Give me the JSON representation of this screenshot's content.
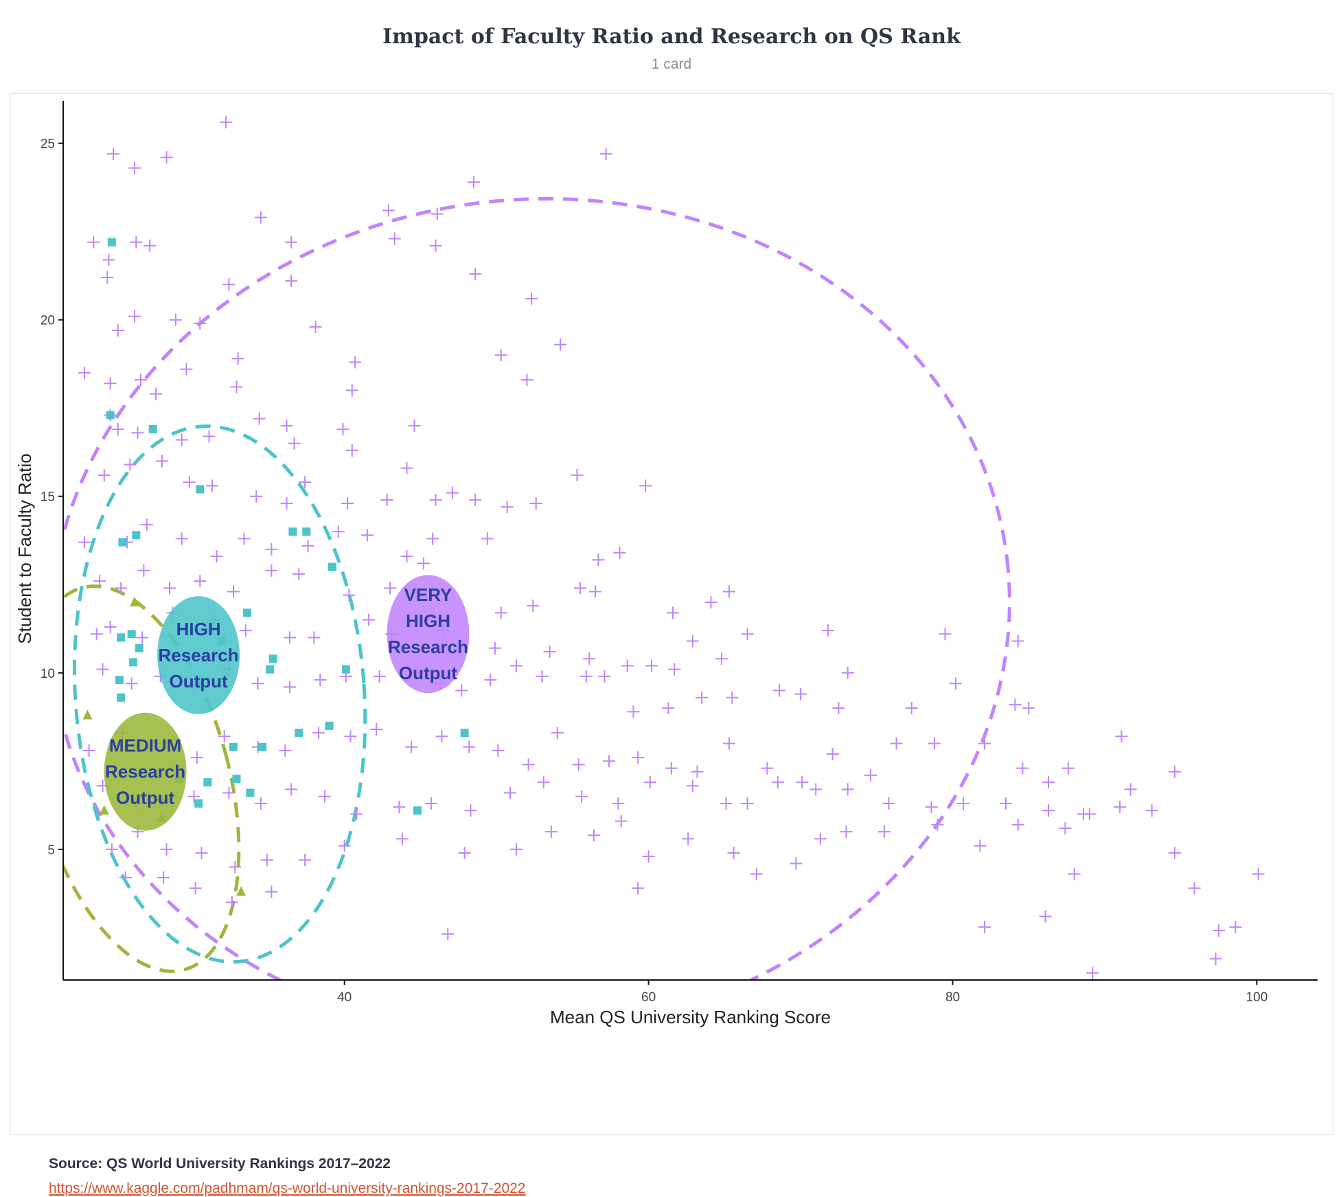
{
  "header": {
    "title": "Impact of Faculty Ratio and Research on QS Rank",
    "subtitle": "1 card"
  },
  "footer": {
    "source": "Source: QS World University Rankings 2017–2022",
    "link": "https://www.kaggle.com/padhmam/qs-world-university-rankings-2017-2022"
  },
  "colors": {
    "very_high": "#c084fc",
    "high": "#4cc4c9",
    "medium": "#9ab83a",
    "label_text": "#2a3fa0"
  },
  "chart_data": {
    "type": "scatter",
    "title": "",
    "xlabel": "Mean QS University Ranking Score",
    "ylabel": "Student to Faculty Ratio",
    "xlim": [
      21.5,
      104
    ],
    "ylim": [
      1.3,
      26.2
    ],
    "xticks": [
      40,
      60,
      80,
      100
    ],
    "yticks": [
      5,
      10,
      15,
      20,
      25
    ],
    "grid": false,
    "legend": "none",
    "series": [
      {
        "key": "very_high",
        "marker": "plus",
        "points": [
          [
            24.8,
            24.7
          ],
          [
            26.2,
            24.3
          ],
          [
            28.3,
            24.6
          ],
          [
            32.2,
            25.6
          ],
          [
            34.5,
            22.9
          ],
          [
            36.5,
            22.2
          ],
          [
            42.9,
            23.1
          ],
          [
            43.3,
            22.3
          ],
          [
            46.1,
            23.0
          ],
          [
            46.0,
            22.1
          ],
          [
            48.5,
            23.9
          ],
          [
            57.2,
            24.7
          ],
          [
            23.5,
            22.2
          ],
          [
            24.5,
            21.7
          ],
          [
            26.3,
            22.2
          ],
          [
            27.2,
            22.1
          ],
          [
            24.4,
            21.2
          ],
          [
            25.1,
            19.7
          ],
          [
            26.2,
            20.1
          ],
          [
            28.9,
            20.0
          ],
          [
            30.5,
            19.9
          ],
          [
            32.4,
            21.0
          ],
          [
            36.5,
            21.1
          ],
          [
            48.6,
            21.3
          ],
          [
            52.3,
            20.6
          ],
          [
            54.2,
            19.3
          ],
          [
            50.3,
            19.0
          ],
          [
            52.0,
            18.3
          ],
          [
            22.9,
            18.5
          ],
          [
            24.6,
            18.2
          ],
          [
            26.6,
            18.3
          ],
          [
            27.6,
            17.9
          ],
          [
            29.6,
            18.6
          ],
          [
            33.0,
            18.9
          ],
          [
            32.9,
            18.1
          ],
          [
            38.1,
            19.8
          ],
          [
            40.7,
            18.8
          ],
          [
            40.5,
            18.0
          ],
          [
            24.6,
            17.3
          ],
          [
            25.1,
            16.9
          ],
          [
            26.4,
            16.8
          ],
          [
            29.3,
            16.6
          ],
          [
            31.1,
            16.7
          ],
          [
            34.4,
            17.2
          ],
          [
            36.2,
            17.0
          ],
          [
            36.7,
            16.5
          ],
          [
            39.9,
            16.9
          ],
          [
            40.5,
            16.3
          ],
          [
            44.6,
            17.0
          ],
          [
            44.1,
            15.8
          ],
          [
            47.1,
            15.1
          ],
          [
            24.2,
            15.6
          ],
          [
            25.9,
            15.9
          ],
          [
            28.0,
            16.0
          ],
          [
            29.8,
            15.4
          ],
          [
            31.3,
            15.3
          ],
          [
            34.2,
            15.0
          ],
          [
            36.2,
            14.8
          ],
          [
            37.4,
            15.4
          ],
          [
            40.2,
            14.8
          ],
          [
            42.8,
            14.9
          ],
          [
            46.0,
            14.9
          ],
          [
            48.6,
            14.9
          ],
          [
            50.7,
            14.7
          ],
          [
            52.6,
            14.8
          ],
          [
            55.3,
            15.6
          ],
          [
            59.8,
            15.3
          ],
          [
            22.9,
            13.7
          ],
          [
            25.7,
            13.7
          ],
          [
            27.0,
            14.2
          ],
          [
            29.3,
            13.8
          ],
          [
            31.6,
            13.3
          ],
          [
            33.4,
            13.8
          ],
          [
            35.2,
            13.5
          ],
          [
            37.6,
            13.6
          ],
          [
            39.6,
            14.0
          ],
          [
            41.5,
            13.9
          ],
          [
            44.1,
            13.3
          ],
          [
            45.8,
            13.8
          ],
          [
            49.4,
            13.8
          ],
          [
            56.7,
            13.2
          ],
          [
            58.1,
            13.4
          ],
          [
            23.9,
            12.6
          ],
          [
            25.3,
            12.4
          ],
          [
            26.8,
            12.9
          ],
          [
            28.5,
            12.4
          ],
          [
            30.5,
            12.6
          ],
          [
            32.7,
            12.3
          ],
          [
            35.2,
            12.9
          ],
          [
            37.0,
            12.8
          ],
          [
            40.3,
            12.2
          ],
          [
            43.0,
            12.4
          ],
          [
            45.2,
            13.1
          ],
          [
            50.3,
            11.7
          ],
          [
            52.4,
            11.9
          ],
          [
            55.5,
            12.4
          ],
          [
            56.5,
            12.3
          ],
          [
            61.6,
            11.7
          ],
          [
            64.1,
            12.0
          ],
          [
            65.3,
            12.3
          ],
          [
            23.7,
            11.1
          ],
          [
            24.6,
            11.3
          ],
          [
            26.7,
            11.0
          ],
          [
            28.7,
            11.7
          ],
          [
            31.4,
            11.5
          ],
          [
            33.5,
            11.2
          ],
          [
            36.4,
            11.0
          ],
          [
            38.0,
            11.0
          ],
          [
            41.6,
            11.5
          ],
          [
            43.1,
            11.1
          ],
          [
            46.5,
            11.2
          ],
          [
            49.9,
            10.7
          ],
          [
            53.5,
            10.6
          ],
          [
            56.1,
            10.4
          ],
          [
            58.6,
            10.2
          ],
          [
            60.2,
            10.2
          ],
          [
            61.7,
            10.1
          ],
          [
            62.9,
            10.9
          ],
          [
            64.8,
            10.4
          ],
          [
            66.5,
            11.1
          ],
          [
            71.8,
            11.2
          ],
          [
            79.5,
            11.1
          ],
          [
            84.3,
            10.9
          ],
          [
            24.1,
            10.1
          ],
          [
            26.0,
            9.7
          ],
          [
            27.9,
            9.9
          ],
          [
            30.1,
            9.6
          ],
          [
            32.4,
            10.1
          ],
          [
            34.3,
            9.7
          ],
          [
            36.4,
            9.6
          ],
          [
            38.4,
            9.8
          ],
          [
            40.1,
            9.9
          ],
          [
            42.3,
            9.9
          ],
          [
            44.8,
            10.0
          ],
          [
            46.3,
            9.7
          ],
          [
            47.7,
            9.5
          ],
          [
            49.6,
            9.8
          ],
          [
            51.3,
            10.2
          ],
          [
            53.0,
            9.9
          ],
          [
            55.9,
            9.9
          ],
          [
            57.1,
            9.9
          ],
          [
            59.0,
            8.9
          ],
          [
            61.3,
            9.0
          ],
          [
            63.5,
            9.3
          ],
          [
            65.5,
            9.3
          ],
          [
            68.6,
            9.5
          ],
          [
            70.0,
            9.4
          ],
          [
            72.5,
            9.0
          ],
          [
            73.1,
            10.0
          ],
          [
            77.3,
            9.0
          ],
          [
            80.2,
            9.7
          ],
          [
            84.1,
            9.1
          ],
          [
            85.0,
            9.0
          ],
          [
            23.2,
            7.8
          ],
          [
            25.4,
            8.3
          ],
          [
            28.1,
            8.0
          ],
          [
            30.3,
            7.6
          ],
          [
            32.1,
            8.2
          ],
          [
            34.3,
            7.9
          ],
          [
            36.1,
            7.8
          ],
          [
            38.3,
            8.3
          ],
          [
            40.4,
            8.2
          ],
          [
            42.1,
            8.4
          ],
          [
            44.4,
            7.9
          ],
          [
            46.4,
            8.2
          ],
          [
            48.2,
            7.9
          ],
          [
            50.1,
            7.8
          ],
          [
            52.1,
            7.4
          ],
          [
            54.0,
            8.3
          ],
          [
            55.4,
            7.4
          ],
          [
            57.4,
            7.5
          ],
          [
            59.3,
            7.6
          ],
          [
            61.5,
            7.3
          ],
          [
            63.2,
            7.2
          ],
          [
            65.3,
            8.0
          ],
          [
            67.8,
            7.3
          ],
          [
            70.1,
            6.9
          ],
          [
            72.1,
            7.7
          ],
          [
            74.6,
            7.1
          ],
          [
            76.3,
            8.0
          ],
          [
            78.8,
            8.0
          ],
          [
            82.1,
            8.0
          ],
          [
            84.6,
            7.3
          ],
          [
            86.3,
            6.9
          ],
          [
            87.6,
            7.3
          ],
          [
            91.1,
            8.2
          ],
          [
            94.6,
            7.2
          ],
          [
            24.1,
            6.8
          ],
          [
            26.3,
            6.3
          ],
          [
            28.0,
            6.4
          ],
          [
            30.1,
            6.5
          ],
          [
            32.4,
            6.6
          ],
          [
            34.5,
            6.3
          ],
          [
            36.5,
            6.7
          ],
          [
            38.7,
            6.5
          ],
          [
            40.8,
            6.0
          ],
          [
            43.6,
            6.2
          ],
          [
            45.7,
            6.3
          ],
          [
            48.3,
            6.1
          ],
          [
            50.9,
            6.6
          ],
          [
            53.1,
            6.9
          ],
          [
            55.6,
            6.5
          ],
          [
            58.0,
            6.3
          ],
          [
            60.1,
            6.9
          ],
          [
            62.9,
            6.8
          ],
          [
            65.1,
            6.3
          ],
          [
            66.5,
            6.3
          ],
          [
            68.5,
            6.9
          ],
          [
            71.0,
            6.7
          ],
          [
            73.1,
            6.7
          ],
          [
            75.8,
            6.3
          ],
          [
            78.6,
            6.2
          ],
          [
            80.7,
            6.3
          ],
          [
            83.5,
            6.3
          ],
          [
            86.3,
            6.1
          ],
          [
            88.6,
            6.0
          ],
          [
            91.0,
            6.2
          ],
          [
            93.1,
            6.1
          ],
          [
            24.7,
            5.0
          ],
          [
            26.4,
            5.5
          ],
          [
            28.3,
            5.0
          ],
          [
            30.6,
            4.9
          ],
          [
            32.8,
            4.5
          ],
          [
            34.9,
            4.7
          ],
          [
            37.4,
            4.7
          ],
          [
            40.0,
            5.1
          ],
          [
            43.8,
            5.3
          ],
          [
            47.9,
            4.9
          ],
          [
            51.3,
            5.0
          ],
          [
            53.6,
            5.5
          ],
          [
            56.4,
            5.4
          ],
          [
            58.2,
            5.8
          ],
          [
            60.0,
            4.8
          ],
          [
            62.6,
            5.3
          ],
          [
            65.6,
            4.9
          ],
          [
            67.1,
            4.3
          ],
          [
            69.7,
            4.6
          ],
          [
            71.3,
            5.3
          ],
          [
            73.0,
            5.5
          ],
          [
            75.5,
            5.5
          ],
          [
            79.0,
            5.7
          ],
          [
            81.8,
            5.1
          ],
          [
            84.3,
            5.7
          ],
          [
            87.4,
            5.6
          ],
          [
            89.0,
            6.0
          ],
          [
            91.7,
            6.7
          ],
          [
            94.6,
            4.9
          ],
          [
            95.9,
            3.9
          ],
          [
            97.5,
            2.7
          ],
          [
            98.6,
            2.8
          ],
          [
            100.1,
            4.3
          ],
          [
            25.6,
            4.2
          ],
          [
            28.1,
            4.2
          ],
          [
            30.2,
            3.9
          ],
          [
            32.6,
            3.5
          ],
          [
            35.2,
            3.8
          ],
          [
            46.8,
            2.6
          ],
          [
            59.3,
            3.9
          ],
          [
            82.1,
            2.8
          ],
          [
            86.1,
            3.1
          ],
          [
            88.0,
            4.3
          ],
          [
            89.2,
            1.5
          ],
          [
            97.3,
            1.9
          ]
        ]
      },
      {
        "key": "high",
        "marker": "square",
        "points": [
          [
            24.7,
            22.2
          ],
          [
            24.6,
            17.3
          ],
          [
            27.4,
            16.9
          ],
          [
            30.5,
            15.2
          ],
          [
            25.4,
            13.7
          ],
          [
            26.3,
            13.9
          ],
          [
            36.6,
            14.0
          ],
          [
            37.5,
            14.0
          ],
          [
            39.2,
            13.0
          ],
          [
            33.6,
            11.7
          ],
          [
            25.3,
            11.0
          ],
          [
            26.0,
            11.1
          ],
          [
            26.1,
            10.3
          ],
          [
            26.5,
            10.7
          ],
          [
            31.9,
            10.9
          ],
          [
            35.1,
            10.1
          ],
          [
            35.3,
            10.4
          ],
          [
            40.1,
            10.1
          ],
          [
            25.2,
            9.8
          ],
          [
            25.3,
            9.3
          ],
          [
            37.0,
            8.3
          ],
          [
            39.0,
            8.5
          ],
          [
            47.9,
            8.3
          ],
          [
            32.7,
            7.9
          ],
          [
            34.6,
            7.9
          ],
          [
            29.1,
            7.0
          ],
          [
            31.0,
            6.9
          ],
          [
            32.9,
            7.0
          ],
          [
            33.8,
            6.6
          ],
          [
            30.4,
            6.3
          ],
          [
            44.8,
            6.1
          ]
        ]
      },
      {
        "key": "medium",
        "marker": "triangle",
        "points": [
          [
            23.1,
            8.8
          ],
          [
            24.2,
            6.1
          ],
          [
            26.2,
            12.0
          ],
          [
            28.0,
            5.9
          ],
          [
            33.2,
            3.8
          ]
        ]
      }
    ],
    "annotations": [
      {
        "key": "very_high",
        "lines": [
          "VERY",
          "HIGH",
          "Research",
          "Output"
        ]
      },
      {
        "key": "high",
        "lines": [
          "HIGH",
          "Research",
          "Output"
        ]
      },
      {
        "key": "medium",
        "lines": [
          "MEDIUM",
          "Research",
          "Output"
        ]
      }
    ]
  }
}
